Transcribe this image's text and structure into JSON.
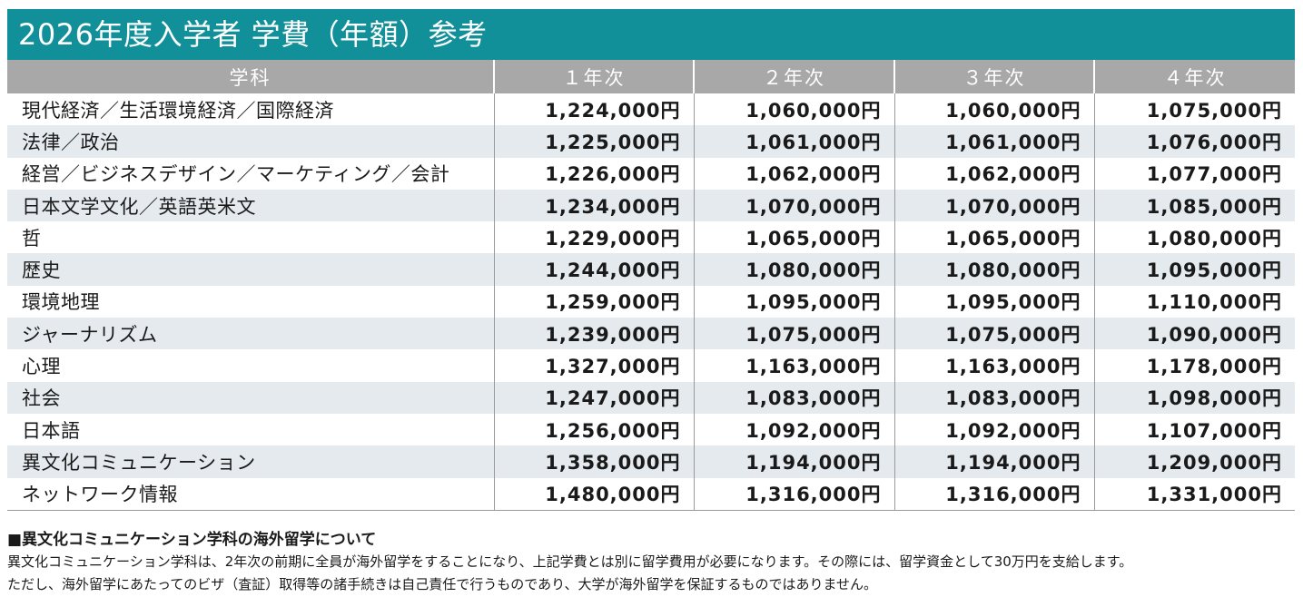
{
  "title": "2026年度入学者 学費（年額）参考",
  "table": {
    "headers": [
      "学科",
      "１年次",
      "２年次",
      "３年次",
      "４年次"
    ],
    "rows": [
      {
        "dept": "現代経済／生活環境経済／国際経済",
        "y1": "1,224,000円",
        "y2": "1,060,000円",
        "y3": "1,060,000円",
        "y4": "1,075,000円"
      },
      {
        "dept": "法律／政治",
        "y1": "1,225,000円",
        "y2": "1,061,000円",
        "y3": "1,061,000円",
        "y4": "1,076,000円"
      },
      {
        "dept": "経営／ビジネスデザイン／マーケティング／会計",
        "y1": "1,226,000円",
        "y2": "1,062,000円",
        "y3": "1,062,000円",
        "y4": "1,077,000円"
      },
      {
        "dept": "日本文学文化／英語英米文",
        "y1": "1,234,000円",
        "y2": "1,070,000円",
        "y3": "1,070,000円",
        "y4": "1,085,000円"
      },
      {
        "dept": "哲",
        "y1": "1,229,000円",
        "y2": "1,065,000円",
        "y3": "1,065,000円",
        "y4": "1,080,000円"
      },
      {
        "dept": "歴史",
        "y1": "1,244,000円",
        "y2": "1,080,000円",
        "y3": "1,080,000円",
        "y4": "1,095,000円"
      },
      {
        "dept": "環境地理",
        "y1": "1,259,000円",
        "y2": "1,095,000円",
        "y3": "1,095,000円",
        "y4": "1,110,000円"
      },
      {
        "dept": "ジャーナリズム",
        "y1": "1,239,000円",
        "y2": "1,075,000円",
        "y3": "1,075,000円",
        "y4": "1,090,000円"
      },
      {
        "dept": "心理",
        "y1": "1,327,000円",
        "y2": "1,163,000円",
        "y3": "1,163,000円",
        "y4": "1,178,000円"
      },
      {
        "dept": "社会",
        "y1": "1,247,000円",
        "y2": "1,083,000円",
        "y3": "1,083,000円",
        "y4": "1,098,000円"
      },
      {
        "dept": "日本語",
        "y1": "1,256,000円",
        "y2": "1,092,000円",
        "y3": "1,092,000円",
        "y4": "1,107,000円"
      },
      {
        "dept": "異文化コミュニケーション",
        "y1": "1,358,000円",
        "y2": "1,194,000円",
        "y3": "1,194,000円",
        "y4": "1,209,000円"
      },
      {
        "dept": "ネットワーク情報",
        "y1": "1,480,000円",
        "y2": "1,316,000円",
        "y3": "1,316,000円",
        "y4": "1,331,000円"
      }
    ]
  },
  "note": {
    "title": "■異文化コミュニケーション学科の海外留学について",
    "line1": "異文化コミュニケーション学科は、2年次の前期に全員が海外留学をすることになり、上記学費とは別に留学費用が必要になります。その際には、留学資金として30万円を支給します。",
    "line2": "ただし、海外留学にあたってのビザ（査証）取得等の諸手続きは自己責任で行うものであり、大学が海外留学を保証するものではありません。"
  }
}
